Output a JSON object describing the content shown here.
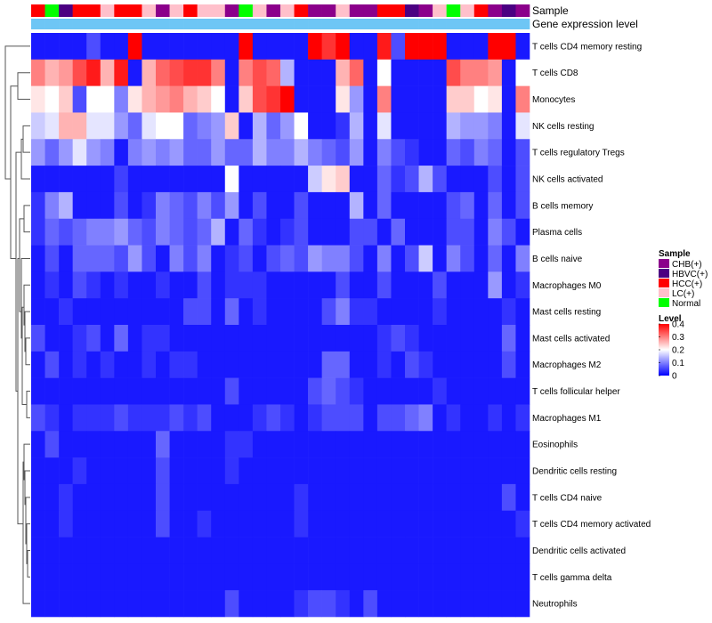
{
  "chart_data": {
    "type": "heatmap",
    "annotation_tracks": [
      "Sample",
      "Gene expression level"
    ],
    "sample_groups": [
      {
        "name": "CHB(+)",
        "color": "#8B008B"
      },
      {
        "name": "HBVC(+)",
        "color": "#4B0082"
      },
      {
        "name": "HCC(+)",
        "color": "#FF0000"
      },
      {
        "name": "LC(+)",
        "color": "#FFC0CB"
      },
      {
        "name": "Normal",
        "color": "#00FF00"
      }
    ],
    "samples": [
      "HCC(+)",
      "Normal",
      "HBVC(+)",
      "HCC(+)",
      "HCC(+)",
      "LC(+)",
      "HCC(+)",
      "HCC(+)",
      "LC(+)",
      "CHB(+)",
      "LC(+)",
      "HCC(+)",
      "LC(+)",
      "LC(+)",
      "CHB(+)",
      "Normal",
      "LC(+)",
      "CHB(+)",
      "LC(+)",
      "HCC(+)",
      "CHB(+)",
      "CHB(+)",
      "LC(+)",
      "CHB(+)",
      "CHB(+)",
      "HCC(+)",
      "HCC(+)",
      "HBVC(+)",
      "CHB(+)",
      "LC(+)",
      "Normal",
      "LC(+)",
      "HCC(+)",
      "CHB(+)",
      "HBVC(+)",
      "CHB(+)"
    ],
    "expression_level_color": "#6EC6F5",
    "rows": [
      "T cells CD4 memory resting",
      "T cells CD8",
      "Monocytes",
      "NK cells resting",
      "T cells regulatory  Tregs",
      "NK cells activated",
      "B cells memory",
      "Plasma cells",
      "B cells naive",
      "Macrophages M0",
      "Mast cells resting",
      "Mast cells activated",
      "Macrophages M2",
      "T cells follicular helper",
      "Macrophages M1",
      "Eosinophils",
      "Dendritic cells resting",
      "T cells CD4 naive",
      "T cells CD4 memory activated",
      "Dendritic cells activated",
      "T cells gamma delta",
      "Neutrophils"
    ],
    "values": [
      [
        0.02,
        0.02,
        0.02,
        0.02,
        0.06,
        0.02,
        0.02,
        0.4,
        0.02,
        0.02,
        0.02,
        0.02,
        0.02,
        0.02,
        0.02,
        0.4,
        0.02,
        0.02,
        0.02,
        0.02,
        0.4,
        0.36,
        0.4,
        0.02,
        0.02,
        0.38,
        0.06,
        0.4,
        0.4,
        0.4,
        0.02,
        0.02,
        0.02,
        0.4,
        0.4,
        0.02
      ],
      [
        0.3,
        0.26,
        0.28,
        0.34,
        0.38,
        0.26,
        0.38,
        0.02,
        0.26,
        0.32,
        0.34,
        0.36,
        0.36,
        0.3,
        0.02,
        0.3,
        0.34,
        0.32,
        0.14,
        0.02,
        0.02,
        0.02,
        0.26,
        0.32,
        0.02,
        0.2,
        0.02,
        0.02,
        0.02,
        0.02,
        0.34,
        0.3,
        0.3,
        0.28,
        0.02,
        0.2
      ],
      [
        0.22,
        0.2,
        0.24,
        0.06,
        0.2,
        0.2,
        0.1,
        0.22,
        0.26,
        0.28,
        0.3,
        0.26,
        0.24,
        0.2,
        0.02,
        0.24,
        0.34,
        0.36,
        0.4,
        0.02,
        0.02,
        0.02,
        0.22,
        0.12,
        0.02,
        0.3,
        0.02,
        0.02,
        0.02,
        0.02,
        0.24,
        0.24,
        0.2,
        0.22,
        0.02,
        0.3
      ],
      [
        0.16,
        0.18,
        0.26,
        0.26,
        0.18,
        0.18,
        0.12,
        0.08,
        0.18,
        0.2,
        0.2,
        0.08,
        0.1,
        0.12,
        0.24,
        0.02,
        0.14,
        0.08,
        0.12,
        0.2,
        0.02,
        0.02,
        0.04,
        0.14,
        0.02,
        0.18,
        0.02,
        0.02,
        0.02,
        0.02,
        0.14,
        0.12,
        0.12,
        0.1,
        0.02,
        0.18
      ],
      [
        0.12,
        0.08,
        0.12,
        0.18,
        0.12,
        0.1,
        0.02,
        0.1,
        0.12,
        0.1,
        0.12,
        0.08,
        0.08,
        0.12,
        0.08,
        0.08,
        0.14,
        0.1,
        0.1,
        0.14,
        0.1,
        0.08,
        0.06,
        0.12,
        0.02,
        0.1,
        0.06,
        0.04,
        0.02,
        0.02,
        0.08,
        0.06,
        0.1,
        0.08,
        0.02,
        0.06
      ],
      [
        0.02,
        0.02,
        0.02,
        0.02,
        0.02,
        0.02,
        0.05,
        0.02,
        0.02,
        0.02,
        0.02,
        0.02,
        0.02,
        0.02,
        0.2,
        0.02,
        0.02,
        0.02,
        0.02,
        0.02,
        0.16,
        0.22,
        0.24,
        0.02,
        0.02,
        0.08,
        0.04,
        0.06,
        0.14,
        0.06,
        0.02,
        0.02,
        0.02,
        0.06,
        0.02,
        0.06
      ],
      [
        0.04,
        0.1,
        0.14,
        0.02,
        0.02,
        0.02,
        0.06,
        0.02,
        0.04,
        0.1,
        0.08,
        0.06,
        0.1,
        0.06,
        0.12,
        0.02,
        0.06,
        0.02,
        0.02,
        0.06,
        0.02,
        0.02,
        0.02,
        0.14,
        0.02,
        0.08,
        0.02,
        0.02,
        0.02,
        0.02,
        0.06,
        0.08,
        0.02,
        0.08,
        0.02,
        0.06
      ],
      [
        0.04,
        0.08,
        0.06,
        0.08,
        0.1,
        0.1,
        0.12,
        0.08,
        0.06,
        0.1,
        0.08,
        0.06,
        0.08,
        0.14,
        0.02,
        0.08,
        0.04,
        0.02,
        0.04,
        0.06,
        0.02,
        0.02,
        0.02,
        0.06,
        0.06,
        0.02,
        0.08,
        0.02,
        0.02,
        0.02,
        0.06,
        0.06,
        0.02,
        0.1,
        0.06,
        0.02
      ],
      [
        0.02,
        0.06,
        0.02,
        0.08,
        0.08,
        0.08,
        0.06,
        0.12,
        0.06,
        0.02,
        0.1,
        0.06,
        0.1,
        0.02,
        0.04,
        0.06,
        0.02,
        0.06,
        0.08,
        0.06,
        0.12,
        0.1,
        0.1,
        0.06,
        0.02,
        0.1,
        0.02,
        0.06,
        0.16,
        0.02,
        0.1,
        0.06,
        0.02,
        0.08,
        0.02,
        0.1
      ],
      [
        0.02,
        0.04,
        0.02,
        0.06,
        0.04,
        0.02,
        0.04,
        0.02,
        0.02,
        0.04,
        0.02,
        0.02,
        0.06,
        0.02,
        0.04,
        0.04,
        0.04,
        0.02,
        0.02,
        0.02,
        0.02,
        0.02,
        0.06,
        0.02,
        0.02,
        0.06,
        0.02,
        0.02,
        0.02,
        0.06,
        0.02,
        0.02,
        0.02,
        0.12,
        0.02,
        0.04
      ],
      [
        0.02,
        0.02,
        0.04,
        0.02,
        0.02,
        0.02,
        0.02,
        0.02,
        0.02,
        0.02,
        0.02,
        0.06,
        0.06,
        0.02,
        0.08,
        0.02,
        0.04,
        0.02,
        0.02,
        0.02,
        0.02,
        0.06,
        0.1,
        0.04,
        0.04,
        0.02,
        0.02,
        0.02,
        0.02,
        0.04,
        0.02,
        0.02,
        0.02,
        0.02,
        0.04,
        0.02
      ],
      [
        0.06,
        0.02,
        0.02,
        0.04,
        0.06,
        0.02,
        0.08,
        0.02,
        0.04,
        0.04,
        0.02,
        0.02,
        0.02,
        0.02,
        0.02,
        0.02,
        0.02,
        0.02,
        0.02,
        0.02,
        0.02,
        0.02,
        0.02,
        0.02,
        0.02,
        0.04,
        0.06,
        0.04,
        0.02,
        0.02,
        0.02,
        0.02,
        0.02,
        0.02,
        0.08,
        0.02
      ],
      [
        0.02,
        0.06,
        0.02,
        0.04,
        0.02,
        0.04,
        0.02,
        0.02,
        0.04,
        0.02,
        0.04,
        0.04,
        0.02,
        0.02,
        0.02,
        0.02,
        0.02,
        0.02,
        0.02,
        0.02,
        0.02,
        0.08,
        0.08,
        0.02,
        0.02,
        0.04,
        0.02,
        0.06,
        0.04,
        0.02,
        0.02,
        0.02,
        0.02,
        0.02,
        0.06,
        0.02
      ],
      [
        0.02,
        0.02,
        0.02,
        0.02,
        0.02,
        0.02,
        0.02,
        0.02,
        0.02,
        0.02,
        0.02,
        0.02,
        0.02,
        0.02,
        0.06,
        0.02,
        0.02,
        0.02,
        0.02,
        0.02,
        0.06,
        0.08,
        0.06,
        0.04,
        0.02,
        0.02,
        0.02,
        0.02,
        0.02,
        0.04,
        0.02,
        0.02,
        0.02,
        0.02,
        0.02,
        0.02
      ],
      [
        0.06,
        0.04,
        0.02,
        0.04,
        0.04,
        0.04,
        0.06,
        0.04,
        0.04,
        0.04,
        0.06,
        0.04,
        0.06,
        0.02,
        0.02,
        0.02,
        0.04,
        0.06,
        0.04,
        0.02,
        0.04,
        0.06,
        0.06,
        0.06,
        0.02,
        0.06,
        0.06,
        0.08,
        0.1,
        0.02,
        0.04,
        0.02,
        0.02,
        0.04,
        0.02,
        0.04
      ],
      [
        0.02,
        0.06,
        0.02,
        0.02,
        0.02,
        0.02,
        0.02,
        0.02,
        0.02,
        0.08,
        0.02,
        0.02,
        0.02,
        0.02,
        0.04,
        0.04,
        0.02,
        0.02,
        0.02,
        0.02,
        0.02,
        0.02,
        0.02,
        0.02,
        0.02,
        0.02,
        0.02,
        0.02,
        0.02,
        0.02,
        0.02,
        0.02,
        0.02,
        0.02,
        0.02,
        0.02
      ],
      [
        0.02,
        0.02,
        0.02,
        0.04,
        0.02,
        0.02,
        0.02,
        0.02,
        0.02,
        0.06,
        0.02,
        0.02,
        0.02,
        0.02,
        0.04,
        0.02,
        0.02,
        0.02,
        0.02,
        0.02,
        0.02,
        0.02,
        0.02,
        0.02,
        0.02,
        0.02,
        0.02,
        0.02,
        0.02,
        0.02,
        0.02,
        0.02,
        0.02,
        0.02,
        0.02,
        0.02
      ],
      [
        0.02,
        0.02,
        0.04,
        0.02,
        0.02,
        0.02,
        0.02,
        0.02,
        0.02,
        0.06,
        0.02,
        0.02,
        0.02,
        0.02,
        0.02,
        0.02,
        0.02,
        0.02,
        0.02,
        0.04,
        0.02,
        0.02,
        0.02,
        0.02,
        0.02,
        0.02,
        0.02,
        0.02,
        0.02,
        0.02,
        0.02,
        0.02,
        0.02,
        0.02,
        0.06,
        0.02
      ],
      [
        0.02,
        0.02,
        0.04,
        0.02,
        0.02,
        0.02,
        0.02,
        0.02,
        0.02,
        0.06,
        0.02,
        0.02,
        0.04,
        0.02,
        0.02,
        0.02,
        0.02,
        0.02,
        0.02,
        0.04,
        0.02,
        0.02,
        0.02,
        0.02,
        0.02,
        0.02,
        0.02,
        0.02,
        0.02,
        0.02,
        0.02,
        0.02,
        0.02,
        0.02,
        0.02,
        0.04
      ],
      [
        0.02,
        0.02,
        0.02,
        0.02,
        0.02,
        0.02,
        0.02,
        0.02,
        0.02,
        0.02,
        0.02,
        0.02,
        0.02,
        0.02,
        0.02,
        0.02,
        0.02,
        0.02,
        0.02,
        0.02,
        0.02,
        0.02,
        0.02,
        0.02,
        0.02,
        0.02,
        0.02,
        0.02,
        0.02,
        0.02,
        0.02,
        0.02,
        0.02,
        0.02,
        0.02,
        0.02
      ],
      [
        0.02,
        0.02,
        0.02,
        0.02,
        0.02,
        0.02,
        0.02,
        0.02,
        0.02,
        0.02,
        0.02,
        0.02,
        0.02,
        0.02,
        0.02,
        0.02,
        0.02,
        0.02,
        0.02,
        0.02,
        0.02,
        0.02,
        0.02,
        0.02,
        0.02,
        0.02,
        0.02,
        0.02,
        0.02,
        0.02,
        0.02,
        0.02,
        0.02,
        0.02,
        0.02,
        0.02
      ],
      [
        0.02,
        0.02,
        0.02,
        0.02,
        0.02,
        0.02,
        0.02,
        0.02,
        0.02,
        0.02,
        0.02,
        0.02,
        0.02,
        0.02,
        0.06,
        0.02,
        0.02,
        0.02,
        0.02,
        0.04,
        0.06,
        0.06,
        0.04,
        0.02,
        0.06,
        0.02,
        0.02,
        0.02,
        0.02,
        0.02,
        0.02,
        0.02,
        0.02,
        0.02,
        0.02,
        0.02
      ]
    ],
    "color_scale": {
      "min": 0,
      "max": 0.4,
      "stops": [
        {
          "value": 0,
          "color": "#0000FF"
        },
        {
          "value": 0.2,
          "color": "#FFFFFF"
        },
        {
          "value": 0.4,
          "color": "#FF0000"
        }
      ]
    },
    "legends": {
      "sample_title": "Sample",
      "level_title": "Level",
      "level_ticks": [
        "0.4",
        "0.3",
        "0.2",
        "0.1",
        "0"
      ]
    }
  }
}
